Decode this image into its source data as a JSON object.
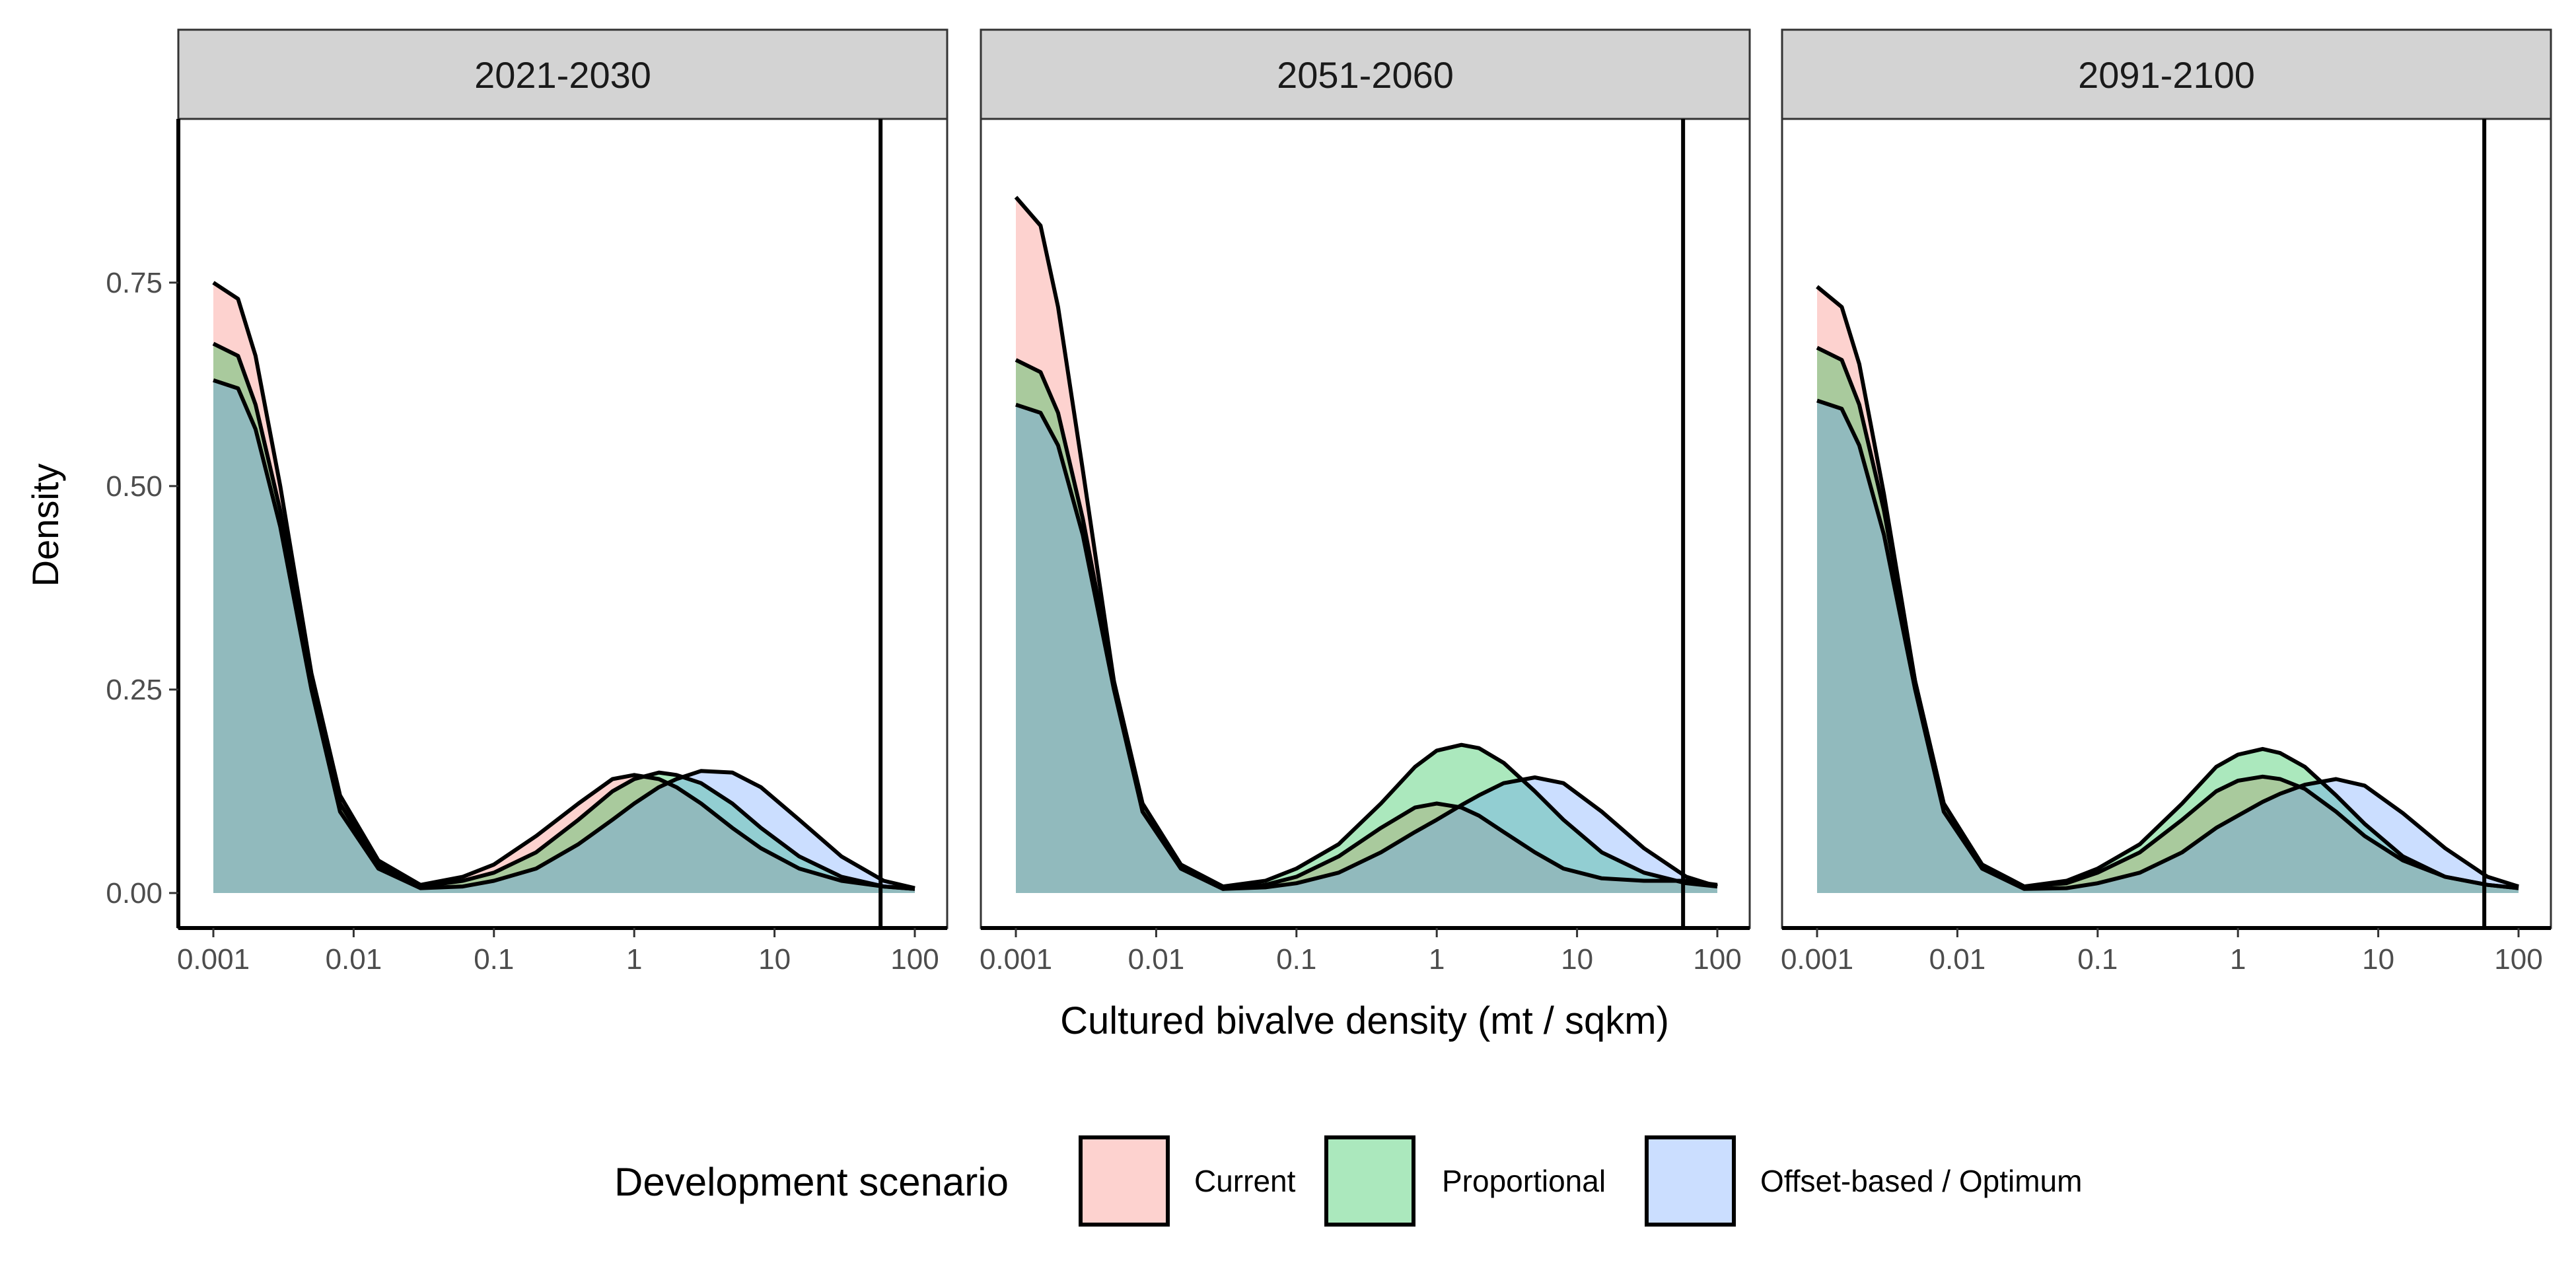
{
  "chart_data": {
    "type": "area",
    "facet_panels": [
      "2021-2030",
      "2051-2060",
      "2091-2100"
    ],
    "xlabel": "Cultured bivalve density (mt / sqkm)",
    "ylabel": "Density",
    "x_scale": "log10",
    "xlim": [
      0.001,
      100
    ],
    "ylim": [
      0,
      0.87
    ],
    "x_ticks": [
      0.001,
      0.01,
      0.1,
      1,
      10,
      100
    ],
    "x_tick_labels": [
      "0.001",
      "0.01",
      "0.1",
      "1",
      "10",
      "100"
    ],
    "y_ticks": [
      0,
      0.25,
      0.5,
      0.75
    ],
    "y_tick_labels": [
      "0.00",
      "0.25",
      "0.50",
      "0.75"
    ],
    "vline_x": 57,
    "legend": {
      "title": "Development scenario",
      "position": "bottom",
      "items": [
        {
          "label": "Current",
          "color": "#F8766D"
        },
        {
          "label": "Proportional",
          "color": "#00BA38"
        },
        {
          "label": "Offset-based / Optimum",
          "color": "#619CFF"
        }
      ]
    },
    "grid": false,
    "note": "Density curves shown on log10 x-axis; values estimated from figure",
    "panels": [
      {
        "title": "2021-2030",
        "series": [
          {
            "name": "Current",
            "x": [
              0.001,
              0.0015,
              0.002,
              0.003,
              0.005,
              0.008,
              0.015,
              0.03,
              0.06,
              0.1,
              0.2,
              0.4,
              0.7,
              1,
              1.5,
              2,
              3,
              5,
              8,
              15,
              30,
              60,
              100
            ],
            "y": [
              0.75,
              0.73,
              0.66,
              0.5,
              0.27,
              0.12,
              0.04,
              0.01,
              0.02,
              0.035,
              0.07,
              0.11,
              0.14,
              0.145,
              0.14,
              0.13,
              0.11,
              0.08,
              0.055,
              0.03,
              0.015,
              0.008,
              0.005
            ]
          },
          {
            "name": "Proportional",
            "x": [
              0.001,
              0.0015,
              0.002,
              0.003,
              0.005,
              0.008,
              0.015,
              0.03,
              0.06,
              0.1,
              0.2,
              0.4,
              0.7,
              1,
              1.5,
              2,
              3,
              5,
              8,
              15,
              30,
              60,
              100
            ],
            "y": [
              0.675,
              0.66,
              0.6,
              0.47,
              0.26,
              0.11,
              0.035,
              0.008,
              0.015,
              0.025,
              0.05,
              0.09,
              0.125,
              0.14,
              0.148,
              0.145,
              0.135,
              0.11,
              0.08,
              0.045,
              0.02,
              0.008,
              0.005
            ]
          },
          {
            "name": "Offset-based / Optimum",
            "x": [
              0.001,
              0.0015,
              0.002,
              0.003,
              0.005,
              0.008,
              0.015,
              0.03,
              0.06,
              0.1,
              0.2,
              0.4,
              0.7,
              1,
              1.5,
              2,
              3,
              5,
              8,
              15,
              30,
              60,
              100
            ],
            "y": [
              0.63,
              0.62,
              0.57,
              0.45,
              0.25,
              0.1,
              0.03,
              0.006,
              0.008,
              0.015,
              0.03,
              0.06,
              0.09,
              0.11,
              0.13,
              0.14,
              0.15,
              0.148,
              0.13,
              0.09,
              0.045,
              0.015,
              0.006
            ]
          }
        ]
      },
      {
        "title": "2051-2060",
        "series": [
          {
            "name": "Current",
            "x": [
              0.001,
              0.0015,
              0.002,
              0.003,
              0.005,
              0.008,
              0.015,
              0.03,
              0.06,
              0.1,
              0.2,
              0.4,
              0.7,
              1,
              1.5,
              2,
              3,
              5,
              8,
              15,
              30,
              60,
              100
            ],
            "y": [
              0.855,
              0.82,
              0.72,
              0.52,
              0.26,
              0.1,
              0.03,
              0.005,
              0.01,
              0.02,
              0.045,
              0.08,
              0.105,
              0.11,
              0.105,
              0.095,
              0.075,
              0.05,
              0.03,
              0.018,
              0.015,
              0.015,
              0.01
            ]
          },
          {
            "name": "Proportional",
            "x": [
              0.001,
              0.0015,
              0.002,
              0.003,
              0.005,
              0.008,
              0.015,
              0.03,
              0.06,
              0.1,
              0.2,
              0.4,
              0.7,
              1,
              1.5,
              2,
              3,
              5,
              8,
              15,
              30,
              60,
              100
            ],
            "y": [
              0.655,
              0.64,
              0.59,
              0.46,
              0.26,
              0.11,
              0.035,
              0.008,
              0.015,
              0.03,
              0.06,
              0.11,
              0.155,
              0.175,
              0.182,
              0.178,
              0.16,
              0.125,
              0.09,
              0.05,
              0.025,
              0.012,
              0.008
            ]
          },
          {
            "name": "Offset-based / Optimum",
            "x": [
              0.001,
              0.0015,
              0.002,
              0.003,
              0.005,
              0.008,
              0.015,
              0.03,
              0.06,
              0.1,
              0.2,
              0.4,
              0.7,
              1,
              1.5,
              2,
              3,
              5,
              8,
              15,
              30,
              60,
              100
            ],
            "y": [
              0.6,
              0.59,
              0.55,
              0.44,
              0.25,
              0.1,
              0.03,
              0.005,
              0.007,
              0.012,
              0.025,
              0.05,
              0.075,
              0.09,
              0.108,
              0.12,
              0.135,
              0.142,
              0.135,
              0.1,
              0.055,
              0.02,
              0.008
            ]
          }
        ]
      },
      {
        "title": "2091-2100",
        "series": [
          {
            "name": "Current",
            "x": [
              0.001,
              0.0015,
              0.002,
              0.003,
              0.005,
              0.008,
              0.015,
              0.03,
              0.06,
              0.1,
              0.2,
              0.4,
              0.7,
              1,
              1.5,
              2,
              3,
              5,
              8,
              15,
              30,
              60,
              100
            ],
            "y": [
              0.745,
              0.72,
              0.65,
              0.49,
              0.26,
              0.11,
              0.035,
              0.008,
              0.012,
              0.025,
              0.05,
              0.09,
              0.125,
              0.138,
              0.143,
              0.14,
              0.128,
              0.1,
              0.07,
              0.04,
              0.02,
              0.01,
              0.006
            ]
          },
          {
            "name": "Proportional",
            "x": [
              0.001,
              0.0015,
              0.002,
              0.003,
              0.005,
              0.008,
              0.015,
              0.03,
              0.06,
              0.1,
              0.2,
              0.4,
              0.7,
              1,
              1.5,
              2,
              3,
              5,
              8,
              15,
              30,
              60,
              100
            ],
            "y": [
              0.67,
              0.655,
              0.6,
              0.47,
              0.26,
              0.11,
              0.035,
              0.008,
              0.015,
              0.03,
              0.06,
              0.11,
              0.155,
              0.17,
              0.177,
              0.172,
              0.155,
              0.12,
              0.085,
              0.045,
              0.02,
              0.01,
              0.006
            ]
          },
          {
            "name": "Offset-based / Optimum",
            "x": [
              0.001,
              0.0015,
              0.002,
              0.003,
              0.005,
              0.008,
              0.015,
              0.03,
              0.06,
              0.1,
              0.2,
              0.4,
              0.7,
              1,
              1.5,
              2,
              3,
              5,
              8,
              15,
              30,
              60,
              100
            ],
            "y": [
              0.605,
              0.595,
              0.55,
              0.44,
              0.25,
              0.1,
              0.03,
              0.005,
              0.006,
              0.012,
              0.025,
              0.05,
              0.08,
              0.095,
              0.112,
              0.122,
              0.133,
              0.14,
              0.132,
              0.098,
              0.055,
              0.02,
              0.008
            ]
          }
        ]
      }
    ]
  }
}
